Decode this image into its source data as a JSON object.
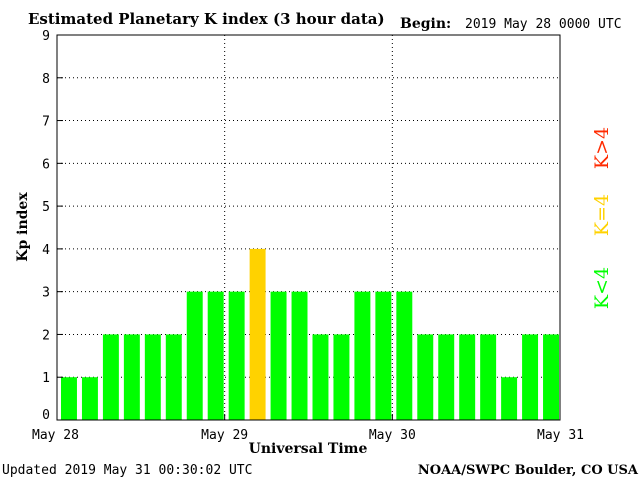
{
  "chart_data": {
    "type": "bar",
    "title": "Estimated Planetary K index (3 hour data)",
    "begin_label": "Begin:",
    "begin_value": "2019 May 28 0000 UTC",
    "ylabel": "Kp index",
    "xlabel": "Universal Time",
    "ylim": [
      0,
      9
    ],
    "yticks": [
      "0",
      "1",
      "2",
      "3",
      "4",
      "5",
      "6",
      "7",
      "8",
      "9"
    ],
    "xticks": [
      "May 28",
      "May 29",
      "May 30",
      "May 31"
    ],
    "values": [
      1,
      1,
      2,
      2,
      2,
      2,
      3,
      3,
      3,
      4,
      3,
      3,
      2,
      2,
      3,
      3,
      3,
      2,
      2,
      2,
      2,
      1,
      2,
      2
    ],
    "grid": true,
    "legend": {
      "placement": "right",
      "entries": [
        {
          "label": "K<4",
          "color": "#00ff00"
        },
        {
          "label": "K=4",
          "color": "#ffd200"
        },
        {
          "label": "K>4",
          "color": "#ff2a00"
        }
      ]
    },
    "colors": {
      "below": "#00ff00",
      "equal": "#ffd200",
      "above": "#ff2a00"
    }
  },
  "footer": {
    "updated": "Updated 2019 May 31 00:30:02 UTC",
    "credit": "NOAA/SWPC Boulder, CO USA"
  }
}
